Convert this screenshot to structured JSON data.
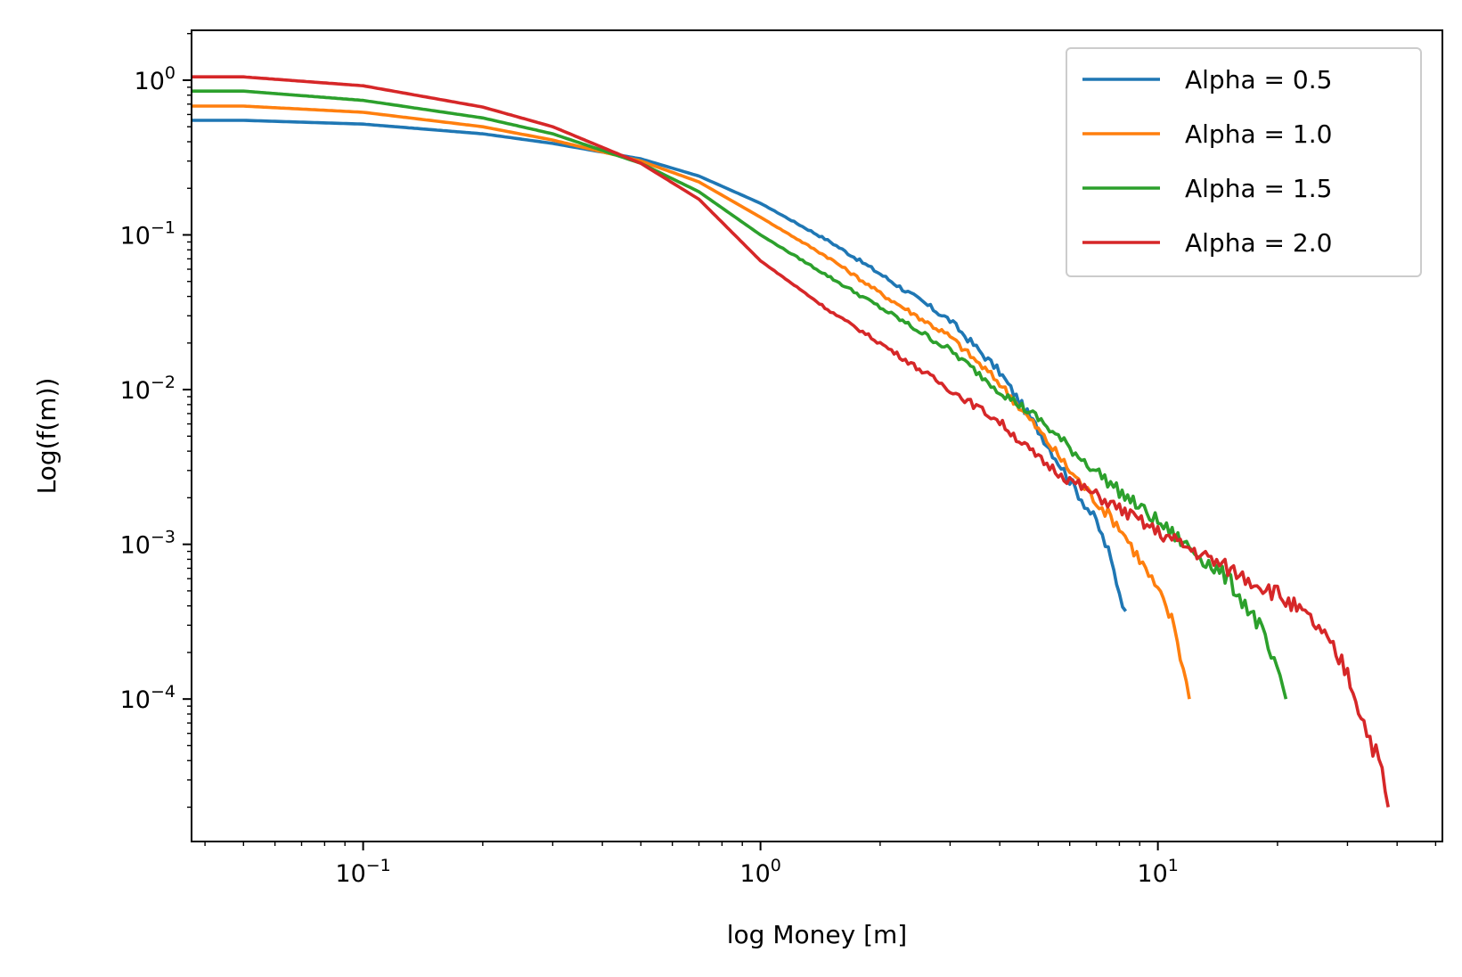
{
  "chart_data": {
    "type": "line",
    "xlabel": "log Money [m]",
    "ylabel": "Log(f(m))",
    "xscale": "log",
    "yscale": "log",
    "xlim": [
      0.037,
      52
    ],
    "ylim": [
      1.2e-05,
      2.1
    ],
    "grid": false,
    "legend_position": "top-right",
    "x_ticks": [
      {
        "value": 0.1,
        "base": "10",
        "exp": "−1"
      },
      {
        "value": 1,
        "base": "10",
        "exp": "0"
      },
      {
        "value": 10,
        "base": "10",
        "exp": "1"
      }
    ],
    "y_ticks": [
      {
        "value": 1,
        "base": "10",
        "exp": "0"
      },
      {
        "value": 0.1,
        "base": "10",
        "exp": "−1"
      },
      {
        "value": 0.01,
        "base": "10",
        "exp": "−2"
      },
      {
        "value": 0.001,
        "base": "10",
        "exp": "−3"
      },
      {
        "value": 0.0001,
        "base": "10",
        "exp": "−4"
      }
    ],
    "series": [
      {
        "name": "Alpha = 0.5",
        "color": "#1f77b4",
        "x": [
          0.037,
          0.05,
          0.1,
          0.2,
          0.3,
          0.5,
          0.7,
          1.0,
          1.5,
          2.0,
          3.0,
          4.0,
          5.0,
          6.0,
          7.0,
          7.5,
          8.0,
          8.3
        ],
        "y": [
          0.55,
          0.55,
          0.52,
          0.45,
          0.39,
          0.31,
          0.24,
          0.16,
          0.09,
          0.056,
          0.028,
          0.013,
          0.0055,
          0.0026,
          0.0014,
          0.0009,
          0.0005,
          0.00037
        ]
      },
      {
        "name": "Alpha = 1.0",
        "color": "#ff7f0e",
        "x": [
          0.037,
          0.05,
          0.1,
          0.2,
          0.3,
          0.5,
          0.7,
          1.0,
          1.5,
          2.0,
          3.0,
          4.0,
          5.0,
          6.0,
          7.0,
          8.0,
          9.0,
          10.0,
          11.0,
          12.0
        ],
        "y": [
          0.68,
          0.68,
          0.62,
          0.5,
          0.41,
          0.3,
          0.22,
          0.13,
          0.07,
          0.042,
          0.022,
          0.011,
          0.0055,
          0.003,
          0.0019,
          0.0013,
          0.0008,
          0.0005,
          0.0003,
          0.0001
        ]
      },
      {
        "name": "Alpha = 1.5",
        "color": "#2ca02c",
        "x": [
          0.037,
          0.05,
          0.1,
          0.2,
          0.3,
          0.5,
          0.7,
          1.0,
          1.5,
          2.0,
          3.0,
          4.0,
          5.0,
          6.0,
          8.0,
          10.0,
          12.0,
          15.0,
          18.0,
          21.0
        ],
        "y": [
          0.85,
          0.85,
          0.74,
          0.57,
          0.45,
          0.29,
          0.19,
          0.1,
          0.053,
          0.034,
          0.018,
          0.0098,
          0.0065,
          0.0042,
          0.0022,
          0.0014,
          0.00095,
          0.0006,
          0.0003,
          0.0001
        ]
      },
      {
        "name": "Alpha = 2.0",
        "color": "#d62728",
        "x": [
          0.037,
          0.05,
          0.1,
          0.2,
          0.3,
          0.5,
          0.7,
          1.0,
          1.5,
          2.0,
          3.0,
          4.0,
          5.0,
          6.0,
          8.0,
          10.0,
          15.0,
          20.0,
          25.0,
          30.0,
          33.0,
          36.0,
          38.0
        ],
        "y": [
          1.05,
          1.05,
          0.92,
          0.67,
          0.5,
          0.29,
          0.17,
          0.068,
          0.032,
          0.02,
          0.01,
          0.0062,
          0.0036,
          0.0026,
          0.0017,
          0.0012,
          0.0007,
          0.00048,
          0.0003,
          0.00015,
          7e-05,
          4e-05,
          2e-05
        ]
      }
    ]
  }
}
